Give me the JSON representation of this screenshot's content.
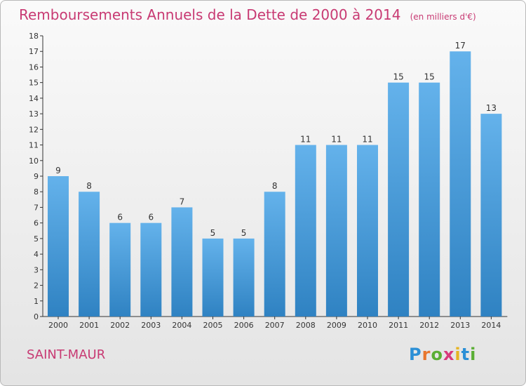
{
  "header": {
    "title": "Remboursements Annuels de la Dette de 2000 à 2014",
    "unit": "(en milliers d'€)"
  },
  "footer": {
    "commune": "SAINT-MAUR",
    "brand": "Proxiti"
  },
  "colors": {
    "title": "#c83a73",
    "bar_top": "#64b2eb",
    "bar_bottom": "#2f82c2",
    "axis": "#333333"
  },
  "chart_data": {
    "type": "bar",
    "title": "Remboursements Annuels de la Dette de 2000 à 2014",
    "subtitle": "(en milliers d'€)",
    "xlabel": "",
    "ylabel": "",
    "categories": [
      "2000",
      "2001",
      "2002",
      "2003",
      "2004",
      "2005",
      "2006",
      "2007",
      "2008",
      "2009",
      "2010",
      "2011",
      "2012",
      "2013",
      "2014"
    ],
    "values": [
      9,
      8,
      6,
      6,
      7,
      5,
      5,
      8,
      11,
      11,
      11,
      15,
      15,
      17,
      13
    ],
    "ylim": [
      0,
      18
    ],
    "yticks": [
      0,
      1,
      2,
      3,
      4,
      5,
      6,
      7,
      8,
      9,
      10,
      11,
      12,
      13,
      14,
      15,
      16,
      17,
      18
    ],
    "grid": false,
    "legend": "none"
  }
}
